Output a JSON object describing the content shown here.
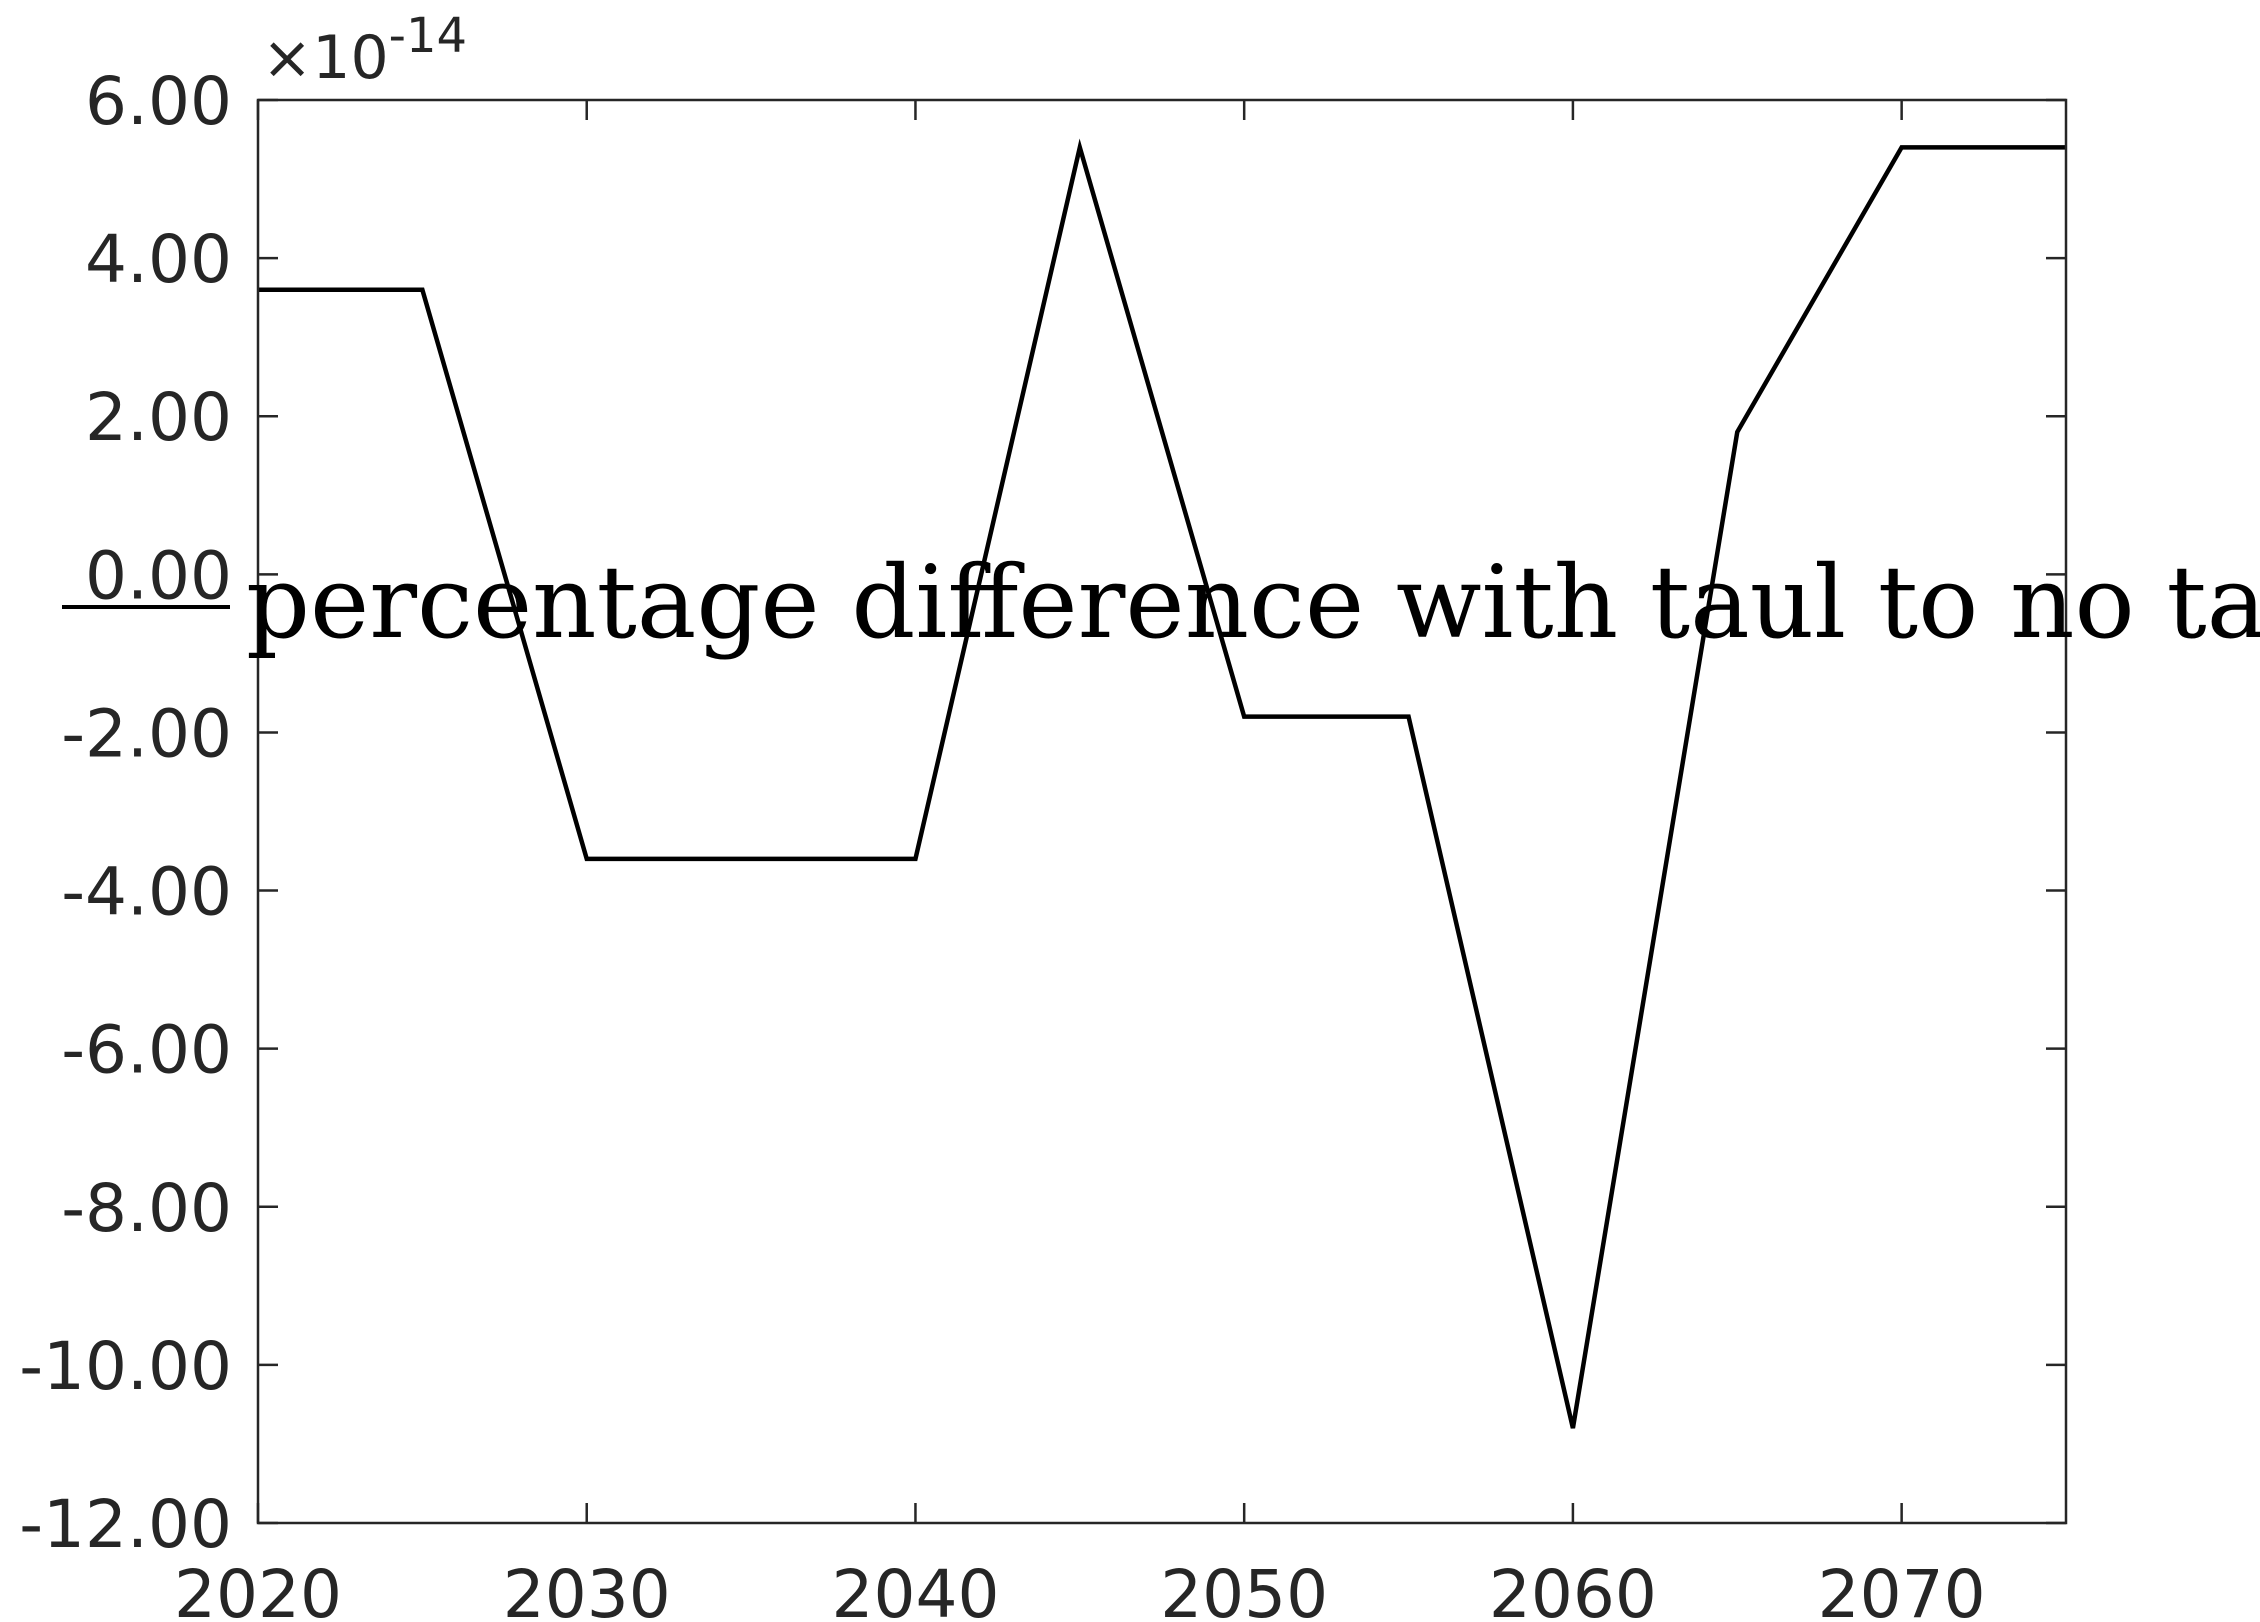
{
  "chart_data": {
    "type": "line",
    "title": "",
    "xlabel": "",
    "ylabel": "",
    "xlim": [
      2020,
      2075
    ],
    "ylim": [
      -12.0,
      6.0
    ],
    "y_exponent_label": "×10",
    "y_exponent_power": "-14",
    "xticks": [
      2020,
      2030,
      2040,
      2050,
      2060,
      2070
    ],
    "xtick_labels": [
      "2020",
      "2030",
      "2040",
      "2050",
      "2060",
      "2070"
    ],
    "yticks": [
      6,
      4,
      2,
      0,
      -2,
      -4,
      -6,
      -8,
      -10,
      -12
    ],
    "ytick_labels": [
      "6.00",
      "4.00",
      "2.00",
      "0.00",
      "-2.00",
      "-4.00",
      "-6.00",
      "-8.00",
      "-10.00",
      "-12.00"
    ],
    "grid": false,
    "legend_position": "center",
    "series": [
      {
        "name": "percentage difference with taul to no taul",
        "color": "#000000",
        "x": [
          2020,
          2025,
          2030,
          2035,
          2040,
          2045,
          2050,
          2055,
          2060,
          2065,
          2070,
          2075
        ],
        "y": [
          3.6,
          3.6,
          -3.6,
          -3.6,
          -3.6,
          5.4,
          -1.8,
          -1.8,
          -10.8,
          1.8,
          5.4,
          5.4
        ]
      }
    ]
  }
}
